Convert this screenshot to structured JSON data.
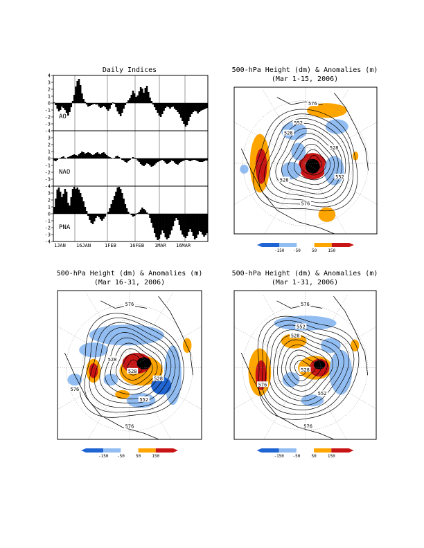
{
  "indices_panel": {
    "title": "Daily Indices",
    "y_ticks": [
      "4",
      "3",
      "2",
      "1",
      "0",
      "-1",
      "-2",
      "-3",
      "-4"
    ],
    "x_tick_labels": [
      "1JAN",
      "16JAN",
      "1FEB",
      "16FEB",
      "1MAR",
      "16MAR"
    ]
  },
  "map_panels": [
    {
      "title": "500-hPa Height (dm) & Anomalies (m)",
      "subtitle": "(Mar 1-15, 2006)",
      "contour_labels": [
        "576",
        "552",
        "528",
        "528",
        "528",
        "552",
        "576"
      ]
    },
    {
      "title": "500-hPa Height (dm) & Anomalies (m)",
      "subtitle": "(Mar 16-31, 2006)",
      "contour_labels": [
        "576",
        "528",
        "528",
        "528",
        "552",
        "576",
        "576"
      ]
    },
    {
      "title": "500-hPa Height (dm) & Anomalies (m)",
      "subtitle": "(Mar 1-31, 2006)",
      "contour_labels": [
        "576",
        "552",
        "528",
        "528",
        "552",
        "576",
        "576"
      ]
    }
  ],
  "colorbar": {
    "labels": [
      "-150",
      "-50",
      "50",
      "150"
    ],
    "colors": {
      "strong_neg": "#1e64d2",
      "neg": "#91bdf2",
      "pos": "#ffa500",
      "strong_pos": "#c81414"
    }
  },
  "chart_data": [
    {
      "type": "bar",
      "name": "AO",
      "label": "AO",
      "x_start": "1JAN",
      "ylim": [
        -4,
        4
      ],
      "values": [
        0.1,
        -0.3,
        -0.8,
        -1.2,
        -1.0,
        -0.5,
        -0.7,
        -1.0,
        -1.4,
        -1.8,
        -1.3,
        -0.6,
        0.3,
        1.2,
        2.4,
        3.2,
        3.5,
        2.6,
        1.4,
        0.6,
        0.2,
        -0.2,
        -0.5,
        -0.4,
        -0.3,
        -0.2,
        -0.1,
        -0.2,
        -0.2,
        -0.5,
        -0.7,
        -0.6,
        -0.4,
        -0.6,
        -0.9,
        -1.1,
        -0.8,
        -0.3,
        0.1,
        -0.1,
        -0.6,
        -1.2,
        -1.6,
        -1.9,
        -1.4,
        -0.8,
        -0.3,
        0.1,
        0.4,
        0.7,
        1.2,
        1.8,
        1.4,
        0.9,
        1.1,
        1.7,
        2.3,
        2.1,
        1.5,
        2.2,
        2.5,
        1.6,
        0.8,
        0.3,
        -0.2,
        -0.6,
        -1.0,
        -1.4,
        -1.8,
        -2.0,
        -1.6,
        -1.1,
        -0.7,
        -0.5,
        -0.6,
        -0.8,
        -0.6,
        -0.5,
        -0.8,
        -1.0,
        -1.3,
        -1.6,
        -2.1,
        -2.6,
        -3.0,
        -3.4,
        -3.2,
        -2.6,
        -2.0,
        -1.6,
        -1.3,
        -1.1,
        -1.2,
        -1.5,
        -1.3,
        -1.1,
        -1.0,
        -0.9,
        -0.8,
        -0.7
      ]
    },
    {
      "type": "bar",
      "name": "NAO",
      "label": "NAO",
      "x_start": "1JAN",
      "ylim": [
        -4,
        4
      ],
      "values": [
        -0.3,
        -0.4,
        -0.2,
        0.0,
        0.1,
        0.2,
        0.3,
        0.1,
        0.0,
        0.2,
        0.3,
        0.4,
        0.5,
        0.6,
        0.5,
        0.4,
        0.6,
        0.8,
        1.0,
        0.9,
        0.7,
        0.8,
        0.9,
        0.8,
        0.6,
        0.5,
        0.6,
        0.8,
        0.9,
        0.7,
        0.6,
        0.8,
        0.9,
        0.7,
        0.5,
        0.3,
        0.2,
        0.1,
        0.0,
        0.1,
        0.3,
        0.4,
        0.2,
        0.0,
        -0.2,
        -0.3,
        -0.5,
        -0.6,
        -0.4,
        -0.2,
        0.0,
        0.2,
        0.1,
        -0.1,
        -0.3,
        -0.5,
        -0.8,
        -1.0,
        -1.1,
        -0.9,
        -0.7,
        -0.8,
        -1.0,
        -1.2,
        -1.1,
        -0.9,
        -0.7,
        -0.5,
        -0.4,
        -0.3,
        -0.2,
        -0.4,
        -0.6,
        -0.8,
        -0.7,
        -0.5,
        -0.3,
        -0.4,
        -0.6,
        -0.8,
        -0.9,
        -0.7,
        -0.5,
        -0.4,
        -0.3,
        -0.2,
        -0.2,
        -0.3,
        -0.4,
        -0.3,
        -0.2,
        -0.2,
        -0.3,
        -0.4,
        -0.5,
        -0.5,
        -0.5,
        -0.4,
        -0.3,
        -0.3
      ]
    },
    {
      "type": "bar",
      "name": "PNA",
      "label": "PNA",
      "x_start": "1JAN",
      "ylim": [
        -4,
        4
      ],
      "values": [
        1.0,
        2.2,
        3.5,
        3.8,
        3.2,
        2.4,
        2.9,
        3.6,
        3.2,
        1.6,
        1.2,
        2.4,
        3.6,
        3.9,
        3.6,
        3.8,
        3.5,
        3.0,
        2.4,
        1.8,
        1.0,
        0.4,
        -0.3,
        -0.9,
        -1.3,
        -1.5,
        -1.1,
        -0.6,
        -0.3,
        -0.5,
        -0.8,
        -1.0,
        -0.7,
        -0.4,
        0.0,
        0.3,
        0.8,
        1.4,
        2.0,
        2.6,
        3.2,
        3.8,
        3.9,
        3.6,
        3.0,
        2.2,
        1.4,
        0.8,
        0.3,
        0.0,
        -0.2,
        -0.4,
        -0.3,
        -0.1,
        0.1,
        0.3,
        0.6,
        0.9,
        0.7,
        0.5,
        0.2,
        -0.1,
        -0.6,
        -1.3,
        -2.0,
        -2.8,
        -3.4,
        -3.8,
        -3.6,
        -3.0,
        -2.4,
        -2.8,
        -3.4,
        -3.7,
        -3.5,
        -3.0,
        -2.4,
        -1.8,
        -1.0,
        -0.6,
        -0.9,
        -1.6,
        -2.4,
        -3.0,
        -3.3,
        -3.5,
        -3.2,
        -2.6,
        -2.2,
        -2.6,
        -3.2,
        -3.7,
        -3.5,
        -3.0,
        -2.5,
        -2.6,
        -3.0,
        -3.3,
        -3.1,
        -2.8
      ]
    }
  ]
}
